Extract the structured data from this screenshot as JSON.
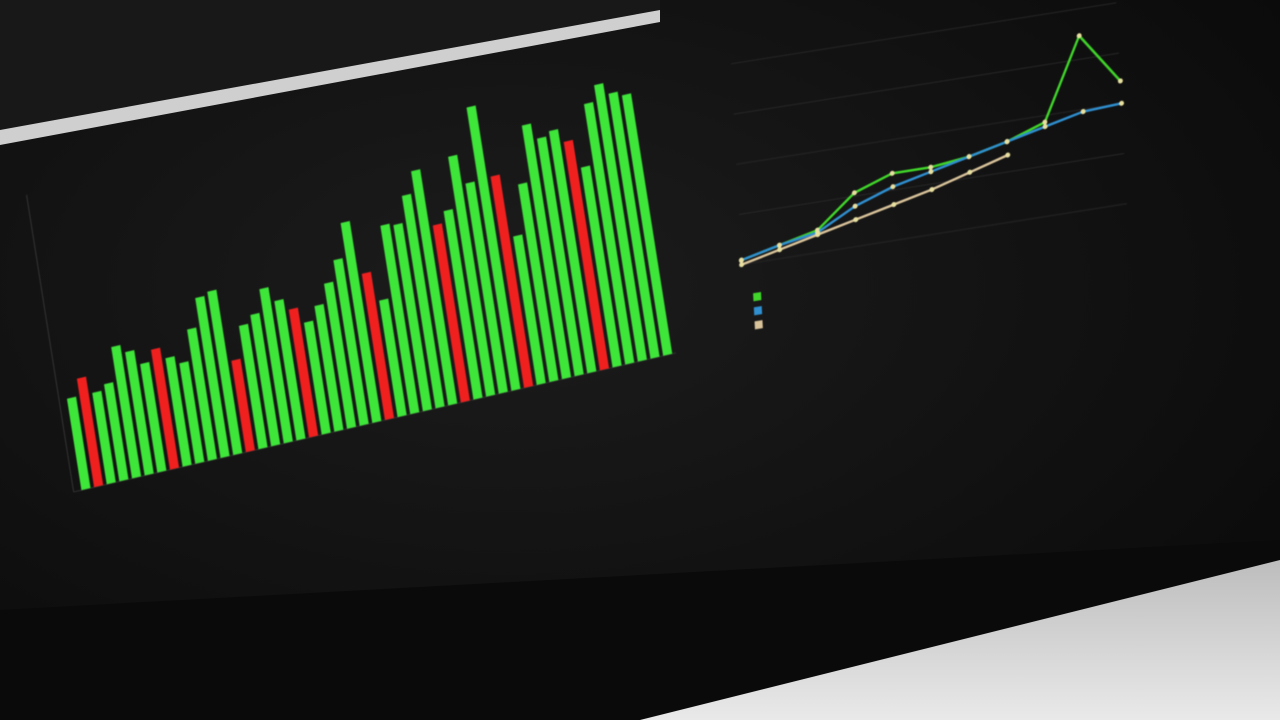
{
  "colors": {
    "up": "#3ee63a",
    "down": "#f0201f",
    "line_green": "#40d62a",
    "line_blue": "#2f8fd0",
    "line_tan": "#d9c39a",
    "background": "#111111"
  },
  "chart_data": [
    {
      "type": "bar",
      "title": "",
      "xlabel": "",
      "ylabel": "",
      "ylim": [
        0,
        260
      ],
      "grid": false,
      "values": [
        80,
        95,
        80,
        85,
        115,
        108,
        95,
        105,
        95,
        88,
        115,
        140,
        143,
        80,
        108,
        115,
        135,
        122,
        112,
        98,
        110,
        127,
        145,
        175,
        128,
        102,
        165,
        163,
        186,
        205,
        155,
        165,
        210,
        184,
        248,
        185,
        130,
        173,
        222,
        208,
        212,
        200,
        175,
        228,
        242,
        232,
        228
      ],
      "directions": [
        "up",
        "down",
        "up",
        "up",
        "up",
        "up",
        "up",
        "down",
        "up",
        "up",
        "up",
        "up",
        "up",
        "down",
        "up",
        "up",
        "up",
        "up",
        "down",
        "up",
        "up",
        "up",
        "up",
        "up",
        "down",
        "up",
        "up",
        "up",
        "up",
        "up",
        "down",
        "up",
        "up",
        "up",
        "up",
        "down",
        "up",
        "up",
        "up",
        "up",
        "up",
        "down",
        "up",
        "up",
        "up",
        "up",
        "up"
      ]
    },
    {
      "type": "line",
      "title": "",
      "xlabel": "",
      "ylabel": "",
      "ylim": [
        0,
        90
      ],
      "grid": true,
      "legend": "bottom-left",
      "x": [
        1,
        2,
        3,
        4,
        5,
        6,
        7,
        8,
        9,
        10,
        11
      ],
      "series": [
        {
          "color": "#40d62a",
          "values": [
            2,
            6,
            10,
            24,
            30,
            30,
            32,
            36,
            42,
            78,
            55
          ]
        },
        {
          "color": "#2f8fd0",
          "values": [
            2,
            6,
            9,
            18,
            24,
            28,
            32,
            36,
            40,
            44,
            45
          ]
        },
        {
          "color": "#d9c39a",
          "values": [
            0,
            4,
            8,
            12,
            16,
            20,
            25,
            30,
            null,
            null,
            null
          ]
        }
      ]
    }
  ]
}
